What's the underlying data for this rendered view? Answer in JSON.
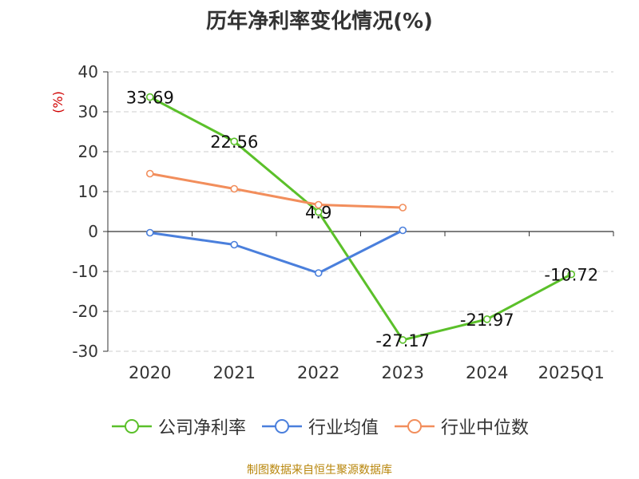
{
  "title": "历年净利率变化情况(%)",
  "source_note": "制图数据来自恒生聚源数据库",
  "colors": {
    "公司净利率": "#5bc02a",
    "行业均值": "#4a7fdc",
    "行业中位数": "#f28e5c",
    "axis": "#333333",
    "grid": "#cccccc",
    "ylabel": "#d00000"
  },
  "chart_data": {
    "type": "line",
    "title": "历年净利率变化情况(%)",
    "xlabel": "",
    "ylabel": "(%)",
    "categories": [
      "2020",
      "2021",
      "2022",
      "2023",
      "2024",
      "2025Q1"
    ],
    "yticks": [
      40,
      30,
      20,
      10,
      0,
      -10,
      -20,
      -30
    ],
    "ylim": [
      -30,
      40
    ],
    "grid": true,
    "legend_position": "bottom",
    "series": [
      {
        "name": "公司净利率",
        "values": [
          33.69,
          22.56,
          4.9,
          -27.17,
          -21.97,
          -10.72
        ],
        "labels": [
          "33.69",
          "22.56",
          "4.9",
          "-27.17",
          "-21.97",
          "-10.72"
        ]
      },
      {
        "name": "行业均值",
        "values": [
          -0.3,
          -3.3,
          -10.4,
          0.3,
          null,
          null
        ]
      },
      {
        "name": "行业中位数",
        "values": [
          14.5,
          10.7,
          6.7,
          6.0,
          null,
          null
        ]
      }
    ]
  }
}
